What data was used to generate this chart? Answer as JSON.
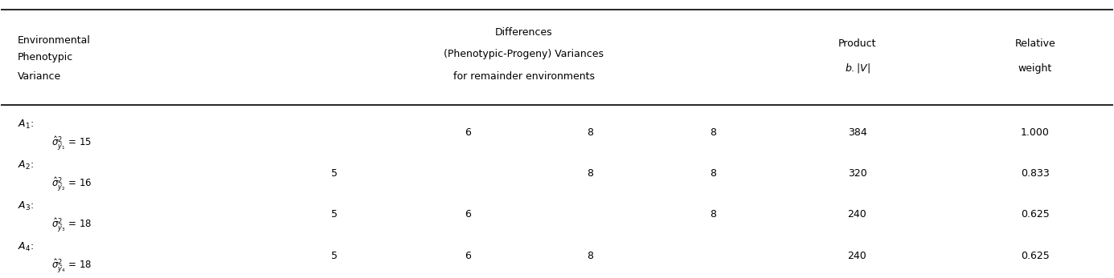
{
  "header_col1_line1": "Environmental",
  "header_col1_line2": "Phenotypic",
  "header_col1_line3": "Variance",
  "header_col2_line1": "Differences",
  "header_col2_line2": "(Phenotypic-Progeny) Variances",
  "header_col2_line3": "for remainder environments",
  "header_col5": "Product\nb.|V|",
  "header_col6": "Relative\nweight",
  "rows": [
    {
      "col1_main": "A₁: ",
      "col1_sub": "σ̂²ᵧ₁ = 15",
      "col3": "6",
      "col4": "8",
      "col5_data": "8",
      "col6": "384",
      "col7": "1.000"
    },
    {
      "col1_main": "A₂: ",
      "col1_sub": "σ̂²ᵧ₂ = 16",
      "col2": "5",
      "col4": "8",
      "col5_data": "8",
      "col6": "320",
      "col7": "0.833"
    },
    {
      "col1_main": "A₃: ",
      "col1_sub": "σ̂²ᵧ₃ = 18",
      "col2": "5",
      "col3": "6",
      "col5_data": "8",
      "col6": "240",
      "col7": "0.625"
    },
    {
      "col1_main": "A₄: ",
      "col1_sub": "σ̂²ᵧ₄ = 18",
      "col2": "5",
      "col3": "6",
      "col4": "8",
      "col6": "240",
      "col7": "0.625"
    }
  ],
  "bg_color": "#ffffff",
  "text_color": "#000000",
  "line_color": "#000000",
  "fontsize": 9,
  "header_fontsize": 9
}
